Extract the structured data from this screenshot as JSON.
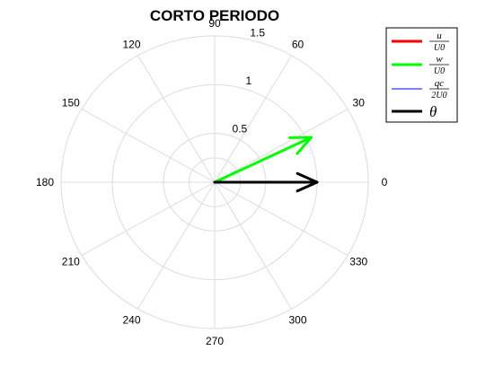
{
  "chart_data": {
    "type": "compass-polar",
    "title": "CORTO PERIODO",
    "theta_ticks": [
      "90",
      "60",
      "30",
      "0",
      "330",
      "300",
      "270",
      "240",
      "210",
      "180",
      "150",
      "120"
    ],
    "theta_tick_degrees": [
      90,
      60,
      30,
      0,
      330,
      300,
      270,
      240,
      210,
      180,
      150,
      120
    ],
    "r_ticks": [
      "0.5",
      "1",
      "1.5"
    ],
    "r_tick_values": [
      0.5,
      1.0,
      1.5
    ],
    "rlim": [
      0,
      1.5
    ],
    "grid": true,
    "legend_position": "top-right",
    "series": [
      {
        "key": "u",
        "legend_num": "u",
        "legend_den": "U0",
        "color": "#ff0000",
        "magnitude": 0.0,
        "angle_deg": 0
      },
      {
        "key": "w",
        "legend_num": "w",
        "legend_den": "U0",
        "color": "#00ff00",
        "magnitude": 1.05,
        "angle_deg": 26
      },
      {
        "key": "qc",
        "legend_num": "qc",
        "legend_den": "2U0",
        "color": "#0000ff",
        "magnitude": 0.0,
        "angle_deg": 0
      },
      {
        "key": "theta",
        "legend_num": "θ",
        "legend_den": "",
        "color": "#000000",
        "magnitude": 1.0,
        "angle_deg": 0
      }
    ]
  }
}
